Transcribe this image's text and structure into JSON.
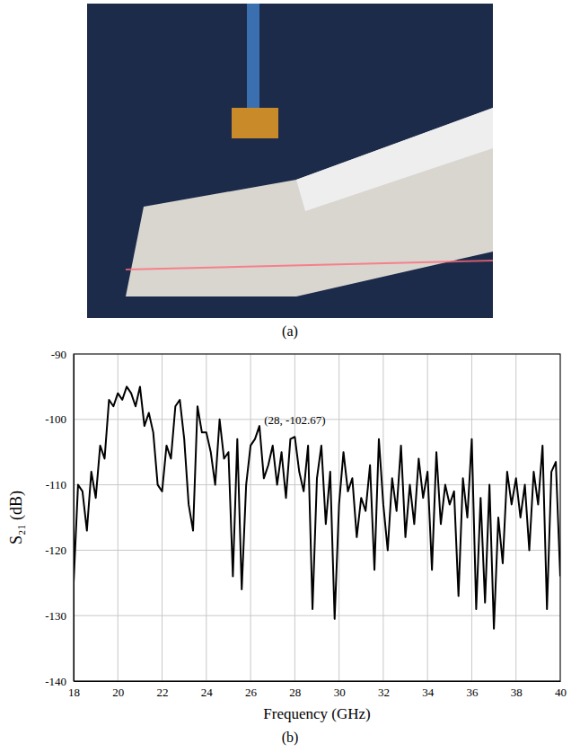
{
  "captions": {
    "a": "(a)",
    "b": "(b)"
  },
  "chart_data": {
    "type": "line",
    "x_label": "Frequency (GHz)",
    "y_label": "S₂₁ (dB)",
    "xlim": [
      18,
      40
    ],
    "xticks": [
      18,
      20,
      22,
      24,
      26,
      28,
      30,
      32,
      34,
      36,
      38,
      40
    ],
    "ylim": [
      -140,
      -90
    ],
    "yticks": [
      -140,
      -130,
      -120,
      -110,
      -100,
      -90
    ],
    "grid": true,
    "color": "#000000",
    "annotations": [
      {
        "text": "(28, -102.67)",
        "x": 28,
        "y": -102.67
      }
    ],
    "x": [
      18.0,
      18.2,
      18.4,
      18.6,
      18.8,
      19.0,
      19.2,
      19.4,
      19.6,
      19.8,
      20.0,
      20.2,
      20.4,
      20.6,
      20.8,
      21.0,
      21.2,
      21.4,
      21.6,
      21.8,
      22.0,
      22.2,
      22.4,
      22.6,
      22.8,
      23.0,
      23.2,
      23.4,
      23.6,
      23.8,
      24.0,
      24.2,
      24.4,
      24.6,
      24.8,
      25.0,
      25.2,
      25.4,
      25.6,
      25.8,
      26.0,
      26.2,
      26.4,
      26.6,
      26.8,
      27.0,
      27.2,
      27.4,
      27.6,
      27.8,
      28.0,
      28.2,
      28.4,
      28.6,
      28.8,
      29.0,
      29.2,
      29.4,
      29.6,
      29.8,
      30.0,
      30.2,
      30.4,
      30.6,
      30.8,
      31.0,
      31.2,
      31.4,
      31.6,
      31.8,
      32.0,
      32.2,
      32.4,
      32.6,
      32.8,
      33.0,
      33.2,
      33.4,
      33.6,
      33.8,
      34.0,
      34.2,
      34.4,
      34.6,
      34.8,
      35.0,
      35.2,
      35.4,
      35.6,
      35.8,
      36.0,
      36.2,
      36.4,
      36.6,
      36.8,
      37.0,
      37.2,
      37.4,
      37.6,
      37.8,
      38.0,
      38.2,
      38.4,
      38.6,
      38.8,
      39.0,
      39.2,
      39.4,
      39.6,
      39.8,
      40.0
    ],
    "values": [
      -125,
      -110,
      -111,
      -117,
      -108,
      -112,
      -104,
      -106,
      -97,
      -98,
      -96,
      -97,
      -95,
      -96,
      -98,
      -95,
      -101,
      -99,
      -102,
      -110,
      -111,
      -104,
      -106,
      -98,
      -97,
      -103,
      -113,
      -117,
      -98,
      -102,
      -102,
      -105,
      -110,
      -100,
      -106,
      -105,
      -124,
      -103,
      -126,
      -110,
      -104,
      -103,
      -101,
      -109,
      -107,
      -104,
      -110,
      -105,
      -112,
      -103,
      -102.67,
      -108,
      -111,
      -104,
      -129,
      -109,
      -104,
      -116,
      -108,
      -130.5,
      -113,
      -105,
      -111,
      -109,
      -118,
      -112,
      -114,
      -107,
      -123,
      -103,
      -113,
      -120,
      -109,
      -114,
      -104,
      -118,
      -110,
      -116,
      -106,
      -112,
      -108,
      -123,
      -105,
      -116,
      -110,
      -113,
      -111,
      -127,
      -109,
      -115,
      -103,
      -129,
      -112,
      -128,
      -110,
      -132,
      -115,
      -122,
      -108,
      -113,
      -109,
      -115,
      -110,
      -120,
      -108,
      -113,
      -104,
      -129,
      -108,
      -106.5,
      -124
    ]
  }
}
